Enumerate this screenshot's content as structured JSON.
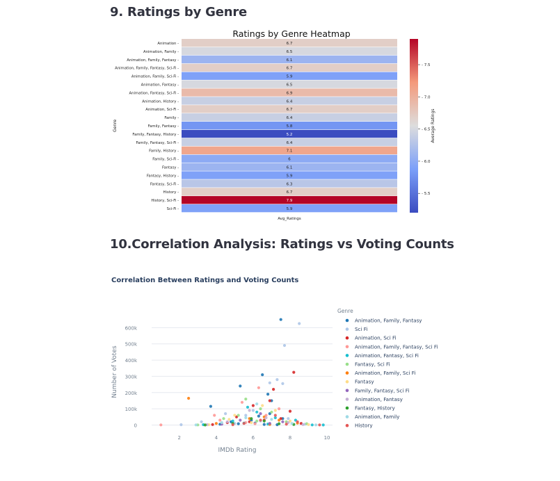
{
  "sections": {
    "genre_title": "9. Ratings by Genre",
    "corr_title": "10.Correlation Analysis: Ratings vs Voting Counts"
  },
  "chart_data": [
    {
      "type": "heatmap",
      "title": "Ratings by Genre Heatmap",
      "ylabel": "Genre",
      "xlabel": "",
      "x_tick_labels": [
        "Avg_Ratings"
      ],
      "colorbar_label": "Average Ratings",
      "colorbar_ticks": [
        5.5,
        6.0,
        6.5,
        7.0,
        7.5
      ],
      "colorbar_tick_labels": [
        "5.5",
        "6.0",
        "6.5",
        "7.0",
        "7.5"
      ],
      "colormap": "coolwarm",
      "vmin": 5.2,
      "vmax": 7.9,
      "categories": [
        "Animation",
        "Animation, Family",
        "Animation, Family, Fantasy",
        "Animation, Family, Fantasy, Sci-Fi",
        "Animation, Family, Sci-Fi",
        "Animation, Fantasy",
        "Animation, Fantasy, Sci-Fi",
        "Animation, History",
        "Animation, Sci-Fi",
        "Family",
        "Family, Fantasy",
        "Family, Fantasy, History",
        "Family, Fantasy, Sci-Fi",
        "Family, History",
        "Family, Sci-Fi",
        "Fantasy",
        "Fantasy, History",
        "Fantasy, Sci-Fi",
        "History",
        "History, Sci-Fi",
        "Sci-Fi"
      ],
      "values": [
        6.7,
        6.5,
        6.1,
        6.7,
        5.9,
        6.5,
        6.9,
        6.4,
        6.7,
        6.4,
        5.8,
        5.2,
        6.4,
        7.1,
        6,
        6.1,
        5.9,
        6.3,
        6.7,
        7.9,
        5.9
      ],
      "value_labels": [
        "6.7",
        "6.5",
        "6.1",
        "6.7",
        "5.9",
        "6.5",
        "6.9",
        "6.4",
        "6.7",
        "6.4",
        "5.8",
        "5.2",
        "6.4",
        "7.1",
        "6",
        "6.1",
        "5.9",
        "6.3",
        "6.7",
        "7.9",
        "5.9"
      ]
    },
    {
      "type": "scatter",
      "title": "Correlation Between Ratings and Voting Counts",
      "xlabel": "IMDb Rating",
      "ylabel": "Number of Votes",
      "xlim": [
        0.5,
        10.3
      ],
      "ylim": [
        -15000,
        670000
      ],
      "x_ticks": [
        2,
        4,
        6,
        8,
        10
      ],
      "x_tick_labels": [
        "2",
        "4",
        "6",
        "8",
        "10"
      ],
      "y_ticks": [
        0,
        100000,
        200000,
        300000,
        400000,
        500000,
        600000
      ],
      "y_tick_labels": [
        "0",
        "100k",
        "200k",
        "300k",
        "400k",
        "500k",
        "600k"
      ],
      "grid": true,
      "legend_title": "Genre",
      "legend_position": "right",
      "series": [
        {
          "name": "Animation, Family, Fantasy",
          "color": "#1f77b4",
          "points": [
            [
              7.5,
              650000
            ],
            [
              6.5,
              310000
            ],
            [
              3.7,
              115000
            ],
            [
              5.3,
              240000
            ],
            [
              7.0,
              150000
            ],
            [
              6.8,
              190000
            ],
            [
              5.9,
              30000
            ],
            [
              6.3,
              55000
            ],
            [
              4.8,
              20000
            ],
            [
              6.9,
              70000
            ],
            [
              7.6,
              40000
            ],
            [
              5.2,
              8000
            ],
            [
              6.1,
              12000
            ],
            [
              4.2,
              5000
            ],
            [
              6.6,
              4000
            ],
            [
              7.3,
              2000
            ]
          ]
        },
        {
          "name": "Sci Fi",
          "color": "#aec7e8",
          "points": [
            [
              8.5,
              625000
            ],
            [
              7.7,
              490000
            ],
            [
              7.3,
              280000
            ],
            [
              6.9,
              260000
            ],
            [
              7.6,
              255000
            ],
            [
              4.5,
              70000
            ],
            [
              6.0,
              90000
            ],
            [
              5.6,
              60000
            ],
            [
              3.2,
              20000
            ],
            [
              5.0,
              10000
            ],
            [
              6.4,
              25000
            ],
            [
              7.9,
              40000
            ],
            [
              2.1,
              2000
            ],
            [
              8.8,
              5000
            ]
          ]
        },
        {
          "name": "Animation, Sci Fi",
          "color": "#d62728",
          "points": [
            [
              8.2,
              325000
            ],
            [
              7.1,
              220000
            ],
            [
              6.9,
              150000
            ],
            [
              6.0,
              120000
            ],
            [
              5.1,
              50000
            ],
            [
              8.0,
              85000
            ],
            [
              7.5,
              40000
            ],
            [
              4.6,
              15000
            ],
            [
              6.6,
              30000
            ],
            [
              8.6,
              10000
            ],
            [
              5.8,
              20000
            ],
            [
              3.8,
              3000
            ]
          ]
        },
        {
          "name": "Animation, Family, Fantasy, Sci Fi",
          "color": "#ff9896",
          "points": [
            [
              6.3,
              230000
            ],
            [
              5.4,
              140000
            ],
            [
              7.4,
              100000
            ],
            [
              6.7,
              60000
            ],
            [
              4.2,
              30000
            ],
            [
              3.9,
              60000
            ],
            [
              1.0,
              1000
            ],
            [
              5.6,
              15000
            ],
            [
              7.8,
              18000
            ],
            [
              6.1,
              8000
            ]
          ]
        },
        {
          "name": "Animation, Fantasy, Sci Fi",
          "color": "#17becf",
          "points": [
            [
              5.7,
              110000
            ],
            [
              6.2,
              80000
            ],
            [
              4.9,
              25000
            ],
            [
              7.2,
              45000
            ],
            [
              8.3,
              30000
            ],
            [
              3.3,
              2000
            ],
            [
              5.5,
              12000
            ],
            [
              6.8,
              6000
            ],
            [
              9.2,
              1000
            ],
            [
              9.8,
              500
            ]
          ]
        },
        {
          "name": "Fantasy, Sci Fi",
          "color": "#98df8a",
          "points": [
            [
              5.6,
              160000
            ],
            [
              6.4,
              100000
            ],
            [
              7.0,
              80000
            ],
            [
              4.4,
              40000
            ],
            [
              5.2,
              60000
            ],
            [
              7.8,
              20000
            ],
            [
              8.9,
              8000
            ],
            [
              3.0,
              1000
            ],
            [
              6.2,
              25000
            ]
          ]
        },
        {
          "name": "Animation, Family, Sci Fi",
          "color": "#ff7f0e",
          "points": [
            [
              2.5,
              165000
            ],
            [
              6.6,
              50000
            ],
            [
              5.8,
              40000
            ],
            [
              7.4,
              30000
            ],
            [
              4.0,
              10000
            ],
            [
              8.4,
              12000
            ],
            [
              6.9,
              4000
            ]
          ]
        },
        {
          "name": "Fantasy",
          "color": "#ffdd88",
          "points": [
            [
              5.0,
              60000
            ],
            [
              6.5,
              120000
            ],
            [
              7.2,
              90000
            ],
            [
              4.7,
              35000
            ],
            [
              8.0,
              25000
            ],
            [
              5.9,
              15000
            ],
            [
              3.6,
              2000
            ],
            [
              9.0,
              3000
            ]
          ]
        },
        {
          "name": "Family, Fantasy, Sci Fi",
          "color": "#9467bd",
          "points": [
            [
              6.4,
              70000
            ],
            [
              5.3,
              30000
            ],
            [
              7.6,
              20000
            ],
            [
              4.3,
              5000
            ],
            [
              6.9,
              10000
            ]
          ]
        },
        {
          "name": "Animation, Fantasy",
          "color": "#c5b0d5",
          "points": [
            [
              5.8,
              90000
            ],
            [
              6.7,
              45000
            ],
            [
              4.6,
              20000
            ],
            [
              7.9,
              15000
            ],
            [
              3.5,
              2000
            ],
            [
              8.7,
              3000
            ]
          ]
        },
        {
          "name": "Fantasy, History",
          "color": "#2ca02c",
          "points": [
            [
              5.9,
              40000
            ],
            [
              6.6,
              25000
            ],
            [
              4.9,
              10000
            ],
            [
              7.4,
              8000
            ],
            [
              8.2,
              4000
            ],
            [
              3.4,
              500
            ]
          ]
        },
        {
          "name": "Animation, Family",
          "color": "#9edae5",
          "points": [
            [
              6.2,
              130000
            ],
            [
              5.6,
              45000
            ],
            [
              7.0,
              35000
            ],
            [
              4.3,
              15000
            ],
            [
              8.1,
              10000
            ],
            [
              2.9,
              1000
            ],
            [
              9.4,
              800
            ]
          ]
        },
        {
          "name": "History",
          "color": "#e45756",
          "points": [
            [
              7.2,
              60000
            ],
            [
              6.4,
              30000
            ],
            [
              5.5,
              10000
            ],
            [
              8.4,
              20000
            ],
            [
              7.8,
              5000
            ],
            [
              4.9,
              2000
            ],
            [
              9.6,
              1000
            ]
          ]
        }
      ]
    }
  ]
}
